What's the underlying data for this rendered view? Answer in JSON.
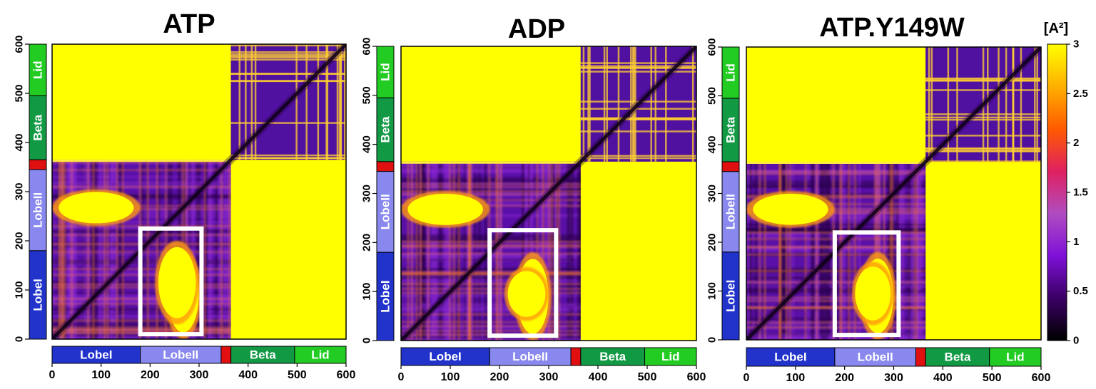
{
  "chart_data": [
    {
      "type": "heatmap",
      "title": "ATP",
      "xlim": [
        0,
        600
      ],
      "ylim": [
        0,
        600
      ],
      "x_ticks": [
        0,
        100,
        200,
        300,
        400,
        500,
        600
      ],
      "y_ticks": [
        0,
        100,
        200,
        300,
        400,
        500,
        600
      ],
      "domains": [
        {
          "label": "LobeI",
          "start": 0,
          "end": 180,
          "color": "#2233cc"
        },
        {
          "label": "LobeII",
          "start": 180,
          "end": 345,
          "color": "#8888ee"
        },
        {
          "label": "",
          "start": 345,
          "end": 365,
          "color": "#e01010"
        },
        {
          "label": "Beta",
          "start": 365,
          "end": 495,
          "color": "#119944"
        },
        {
          "label": "Lid",
          "start": 495,
          "end": 600,
          "color": "#22cc22"
        }
      ],
      "highlight_box": {
        "x": [
          180,
          305
        ],
        "y": [
          10,
          225
        ]
      },
      "high_blocks": [
        {
          "x": [
            0,
            365
          ],
          "y": [
            365,
            600
          ]
        },
        {
          "x": [
            365,
            600
          ],
          "y": [
            0,
            365
          ]
        },
        {
          "x": [
            0,
            180
          ],
          "y": [
            230,
            305
          ]
        },
        {
          "x": [
            230,
            305
          ],
          "y": [
            0,
            180
          ]
        },
        {
          "x": [
            210,
            300
          ],
          "y": [
            30,
            200
          ]
        }
      ]
    },
    {
      "type": "heatmap",
      "title": "ADP",
      "xlim": [
        0,
        600
      ],
      "ylim": [
        0,
        600
      ],
      "x_ticks": [
        0,
        100,
        200,
        300,
        400,
        500,
        600
      ],
      "y_ticks": [
        0,
        100,
        200,
        300,
        400,
        500,
        600
      ],
      "domains": [
        {
          "label": "LobeI",
          "start": 0,
          "end": 180,
          "color": "#2233cc"
        },
        {
          "label": "LobeII",
          "start": 180,
          "end": 345,
          "color": "#8888ee"
        },
        {
          "label": "",
          "start": 345,
          "end": 365,
          "color": "#e01010"
        },
        {
          "label": "Beta",
          "start": 365,
          "end": 495,
          "color": "#119944"
        },
        {
          "label": "Lid",
          "start": 495,
          "end": 600,
          "color": "#22cc22"
        }
      ],
      "highlight_box": {
        "x": [
          180,
          315
        ],
        "y": [
          10,
          225
        ]
      },
      "high_blocks": [
        {
          "x": [
            0,
            365
          ],
          "y": [
            365,
            600
          ]
        },
        {
          "x": [
            365,
            600
          ],
          "y": [
            0,
            365
          ]
        },
        {
          "x": [
            0,
            180
          ],
          "y": [
            230,
            305
          ]
        },
        {
          "x": [
            230,
            305
          ],
          "y": [
            0,
            180
          ]
        },
        {
          "x": [
            210,
            300
          ],
          "y": [
            40,
            150
          ]
        }
      ]
    },
    {
      "type": "heatmap",
      "title": "ATP.Y149W",
      "xlim": [
        0,
        600
      ],
      "ylim": [
        0,
        600
      ],
      "x_ticks": [
        0,
        100,
        200,
        300,
        400,
        500,
        600
      ],
      "y_ticks": [
        0,
        100,
        200,
        300,
        400,
        500,
        600
      ],
      "domains": [
        {
          "label": "LobeI",
          "start": 0,
          "end": 180,
          "color": "#2233cc"
        },
        {
          "label": "LobeII",
          "start": 180,
          "end": 345,
          "color": "#8888ee"
        },
        {
          "label": "",
          "start": 345,
          "end": 365,
          "color": "#e01010"
        },
        {
          "label": "Beta",
          "start": 365,
          "end": 495,
          "color": "#119944"
        },
        {
          "label": "Lid",
          "start": 495,
          "end": 600,
          "color": "#22cc22"
        }
      ],
      "highlight_box": {
        "x": [
          180,
          310
        ],
        "y": [
          10,
          220
        ]
      },
      "high_blocks": [
        {
          "x": [
            0,
            365
          ],
          "y": [
            365,
            600
          ]
        },
        {
          "x": [
            365,
            600
          ],
          "y": [
            0,
            365
          ]
        },
        {
          "x": [
            0,
            180
          ],
          "y": [
            230,
            305
          ]
        },
        {
          "x": [
            230,
            305
          ],
          "y": [
            0,
            180
          ]
        },
        {
          "x": [
            215,
            300
          ],
          "y": [
            30,
            160
          ]
        }
      ]
    }
  ],
  "colorbar": {
    "unit": "[A²]",
    "range": [
      0,
      3
    ],
    "ticks": [
      "3",
      "2.5",
      "2",
      "1.5",
      "1",
      "0.5",
      "0"
    ],
    "stops": [
      "#000000",
      "#3a0064",
      "#7e10d8",
      "#b04cc0",
      "#e02060",
      "#ff5a00",
      "#ffb000",
      "#ffff00"
    ]
  }
}
